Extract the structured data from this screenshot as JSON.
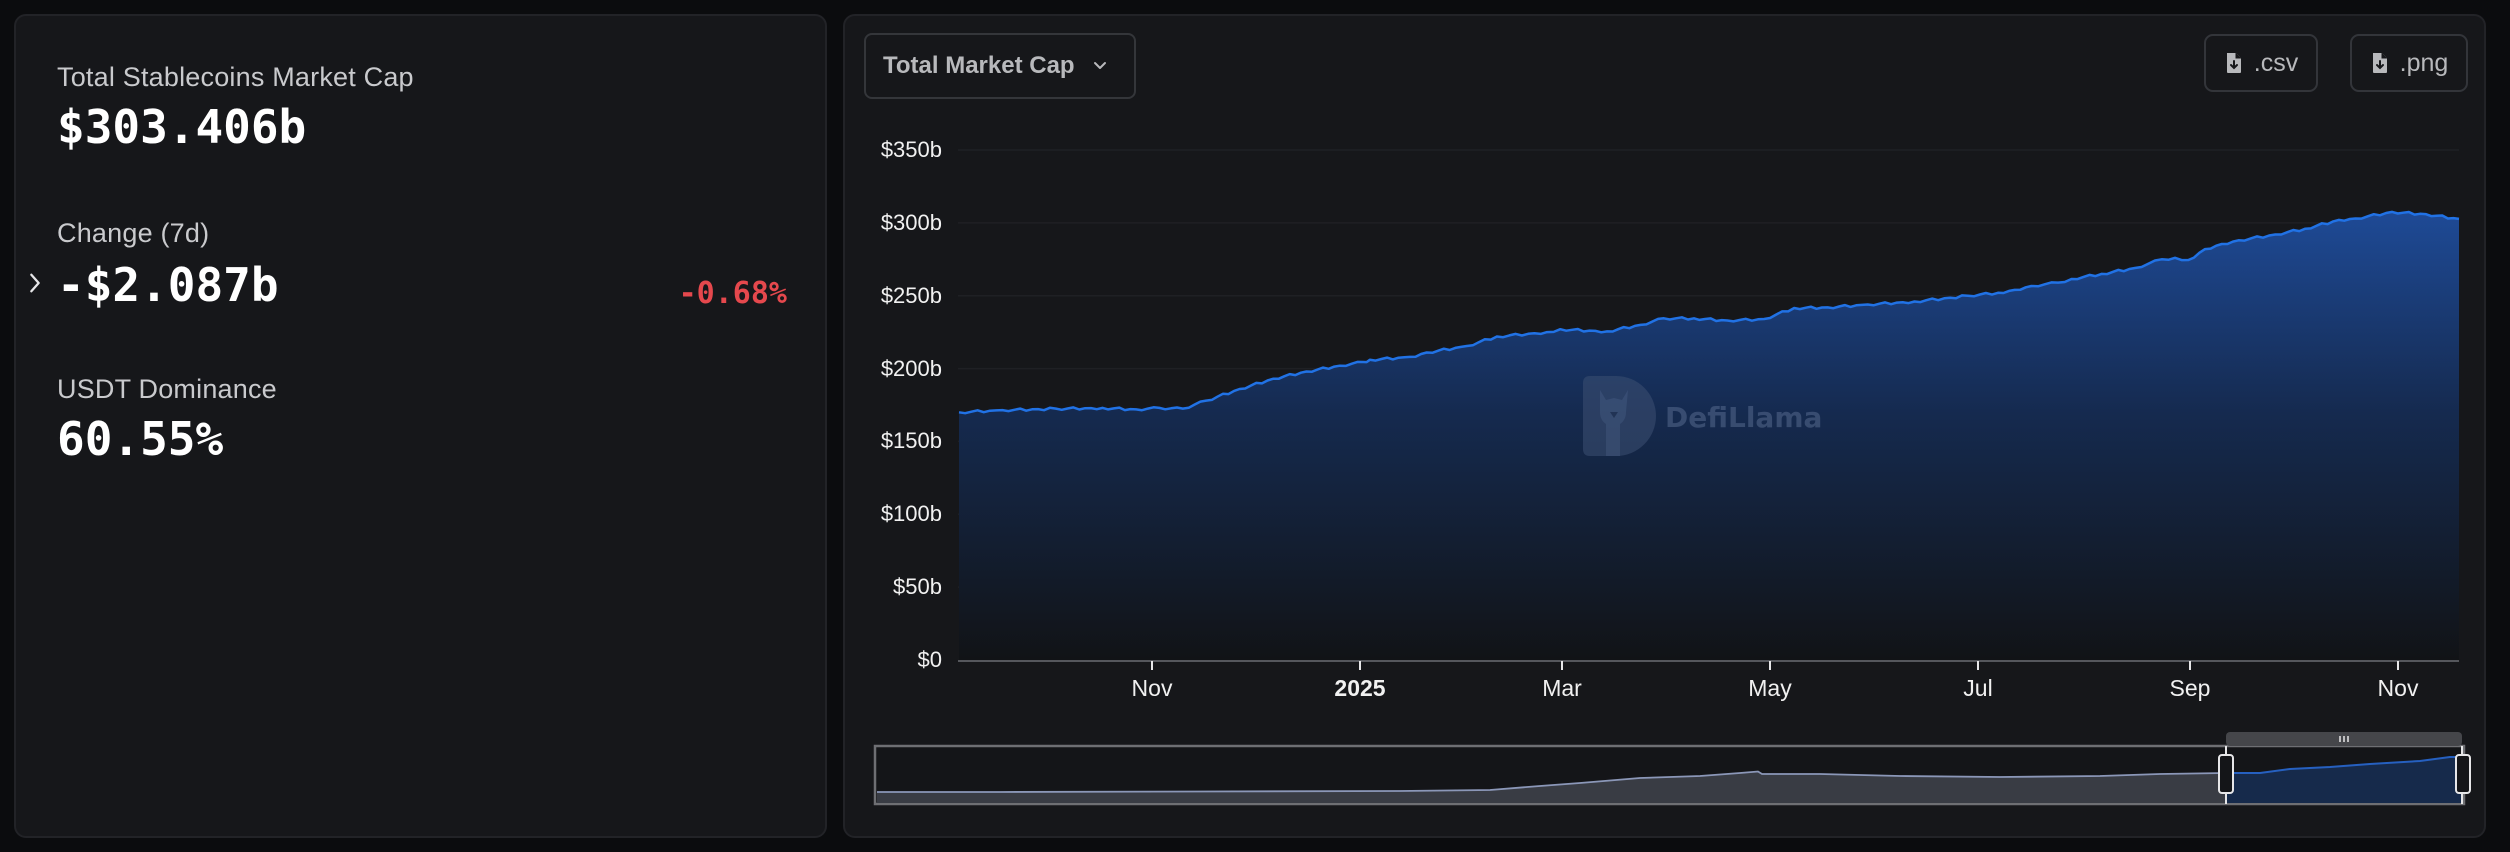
{
  "stats": {
    "market_cap": {
      "label": "Total Stablecoins Market Cap",
      "value": "$303.406b"
    },
    "change_7d": {
      "label": "Change (7d)",
      "value": "-$2.087b",
      "percent": "-0.68%",
      "percent_color": "#e5484d",
      "expand_icon": "chevron-right-icon"
    },
    "usdt_dominance": {
      "label": "USDT Dominance",
      "value": "60.55%"
    }
  },
  "toolbar": {
    "chart_type_dropdown": {
      "selected": "Total Market Cap",
      "icon": "chevron-down-icon"
    },
    "csv_button": {
      "label": ".csv",
      "icon": "file-download-icon"
    },
    "png_button": {
      "label": ".png",
      "icon": "file-download-icon"
    }
  },
  "watermark": {
    "text": "DefiLlama",
    "icon": "llama-logo-icon"
  },
  "colors": {
    "line": "#2172e5",
    "fill_top": "#1d4690",
    "fill_bottom": "#121417",
    "grid": "#1f2024",
    "brush_fill": "#393c44",
    "brush_selected": "#16294a"
  },
  "chart_data": {
    "type": "area",
    "title": "Total Market Cap",
    "xlabel": "",
    "ylabel": "",
    "ylim": [
      0,
      350
    ],
    "y_ticks": [
      "$0",
      "$50b",
      "$100b",
      "$150b",
      "$200b",
      "$250b",
      "$300b",
      "$350b"
    ],
    "x_ticks": [
      "Nov",
      "2025",
      "Mar",
      "May",
      "Jul",
      "Sep",
      "Nov"
    ],
    "grid": true,
    "legend": "none",
    "units": "USD billions",
    "series": [
      {
        "name": "Total Stablecoins Market Cap",
        "x": [
          "2024-09-02",
          "2024-09-15",
          "2024-10-01",
          "2024-10-15",
          "2024-10-25",
          "2024-11-01",
          "2024-11-08",
          "2024-11-15",
          "2024-11-25",
          "2024-12-05",
          "2024-12-15",
          "2024-12-25",
          "2025-01-01",
          "2025-01-03",
          "2025-01-15",
          "2025-01-20",
          "2025-02-01",
          "2025-02-10",
          "2025-02-25",
          "2025-03-01",
          "2025-03-15",
          "2025-03-25",
          "2025-04-01",
          "2025-04-10",
          "2025-04-20",
          "2025-05-01",
          "2025-05-10",
          "2025-05-20",
          "2025-06-01",
          "2025-06-15",
          "2025-07-01",
          "2025-07-10",
          "2025-07-15",
          "2025-07-20",
          "2025-07-28",
          "2025-08-01",
          "2025-08-10",
          "2025-08-20",
          "2025-08-28",
          "2025-09-01",
          "2025-09-05",
          "2025-09-10",
          "2025-09-15",
          "2025-09-20",
          "2025-10-01",
          "2025-10-10",
          "2025-10-20",
          "2025-10-25",
          "2025-11-05",
          "2025-11-15",
          "2025-11-25"
        ],
        "values": [
          170,
          171.5,
          172.5,
          173,
          172,
          173,
          172.5,
          178,
          186,
          193,
          198,
          202,
          204.5,
          206,
          208,
          211,
          215.5,
          222,
          225,
          227,
          225.5,
          230,
          234.5,
          234.5,
          233,
          234,
          241.6,
          242,
          244,
          246,
          250,
          252,
          254,
          256.7,
          259,
          261.5,
          265,
          269,
          275,
          276,
          274.5,
          282,
          285.5,
          288,
          292,
          296,
          302,
          303,
          307.5,
          306,
          302.7
        ]
      }
    ],
    "brush": {
      "selected_start": "2024-09",
      "selected_end": "2025-11",
      "handle_icon": "grip-icon"
    }
  }
}
